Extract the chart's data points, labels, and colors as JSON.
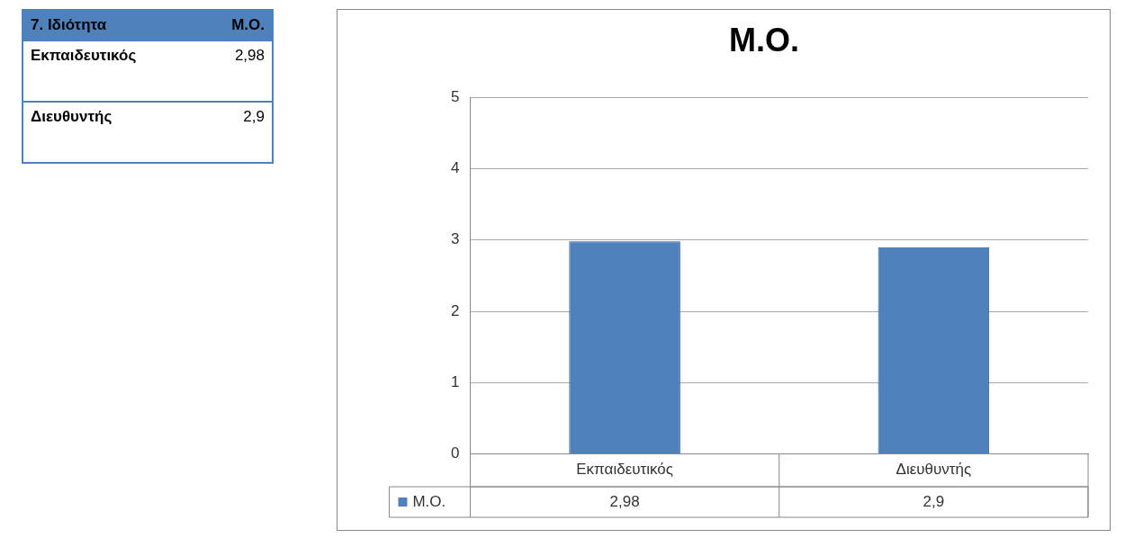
{
  "chart_data": [
    {
      "type": "other",
      "annotations": [
        "7. Ιδιότητα",
        "Μ.Ο."
      ],
      "categories": [
        "Εκπαιδευτικός",
        "Διευθυντής"
      ],
      "value_labels": [
        "2,98",
        "2,9"
      ]
    },
    {
      "type": "bar",
      "title": "Μ.Ο.",
      "categories": [
        "Εκπαιδευτικός",
        "Διευθυντής"
      ],
      "series": [
        {
          "name": "Μ.Ο.",
          "color": "#4f81bd",
          "values": [
            2.98,
            2.9
          ],
          "value_labels": [
            "2,98",
            "2,9"
          ]
        }
      ],
      "ylim": [
        0,
        5
      ],
      "yticks": [
        0,
        1,
        2,
        3,
        4,
        5
      ],
      "grid": "y",
      "legend": "bottom"
    }
  ]
}
